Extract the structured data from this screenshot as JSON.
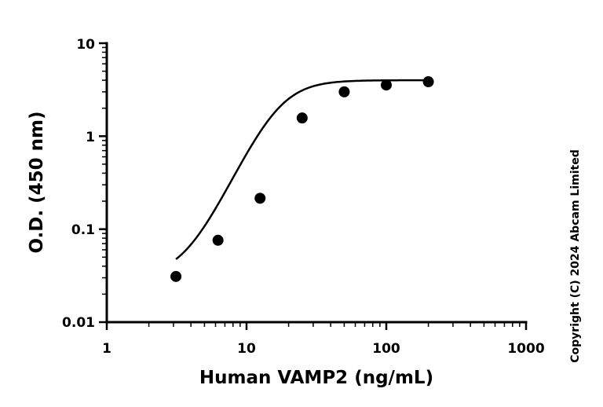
{
  "chart_data": {
    "type": "scatter",
    "xlabel": "Human VAMP2 (ng/mL)",
    "ylabel": "O.D. (450 nm)",
    "x_scale": "log",
    "y_scale": "log",
    "xlim": [
      1,
      1000
    ],
    "ylim": [
      0.01,
      10
    ],
    "x_ticks": [
      "1",
      "10",
      "100",
      "1000"
    ],
    "y_ticks": [
      "0.01",
      "0.1",
      "1",
      "10"
    ],
    "grid": false,
    "legend": "none",
    "series": [
      {
        "x": [
          3.125,
          6.25,
          12.5,
          25,
          50,
          100,
          200
        ],
        "y": [
          0.031,
          0.076,
          0.215,
          1.57,
          3.0,
          3.55,
          3.85
        ]
      }
    ],
    "fit": {
      "model": "4PL",
      "bottom": 0.03,
      "top": 4.0,
      "ec50": 17,
      "hill": 3.2
    }
  },
  "copyright": "Copyright (C) 2024 Abcam Limited"
}
